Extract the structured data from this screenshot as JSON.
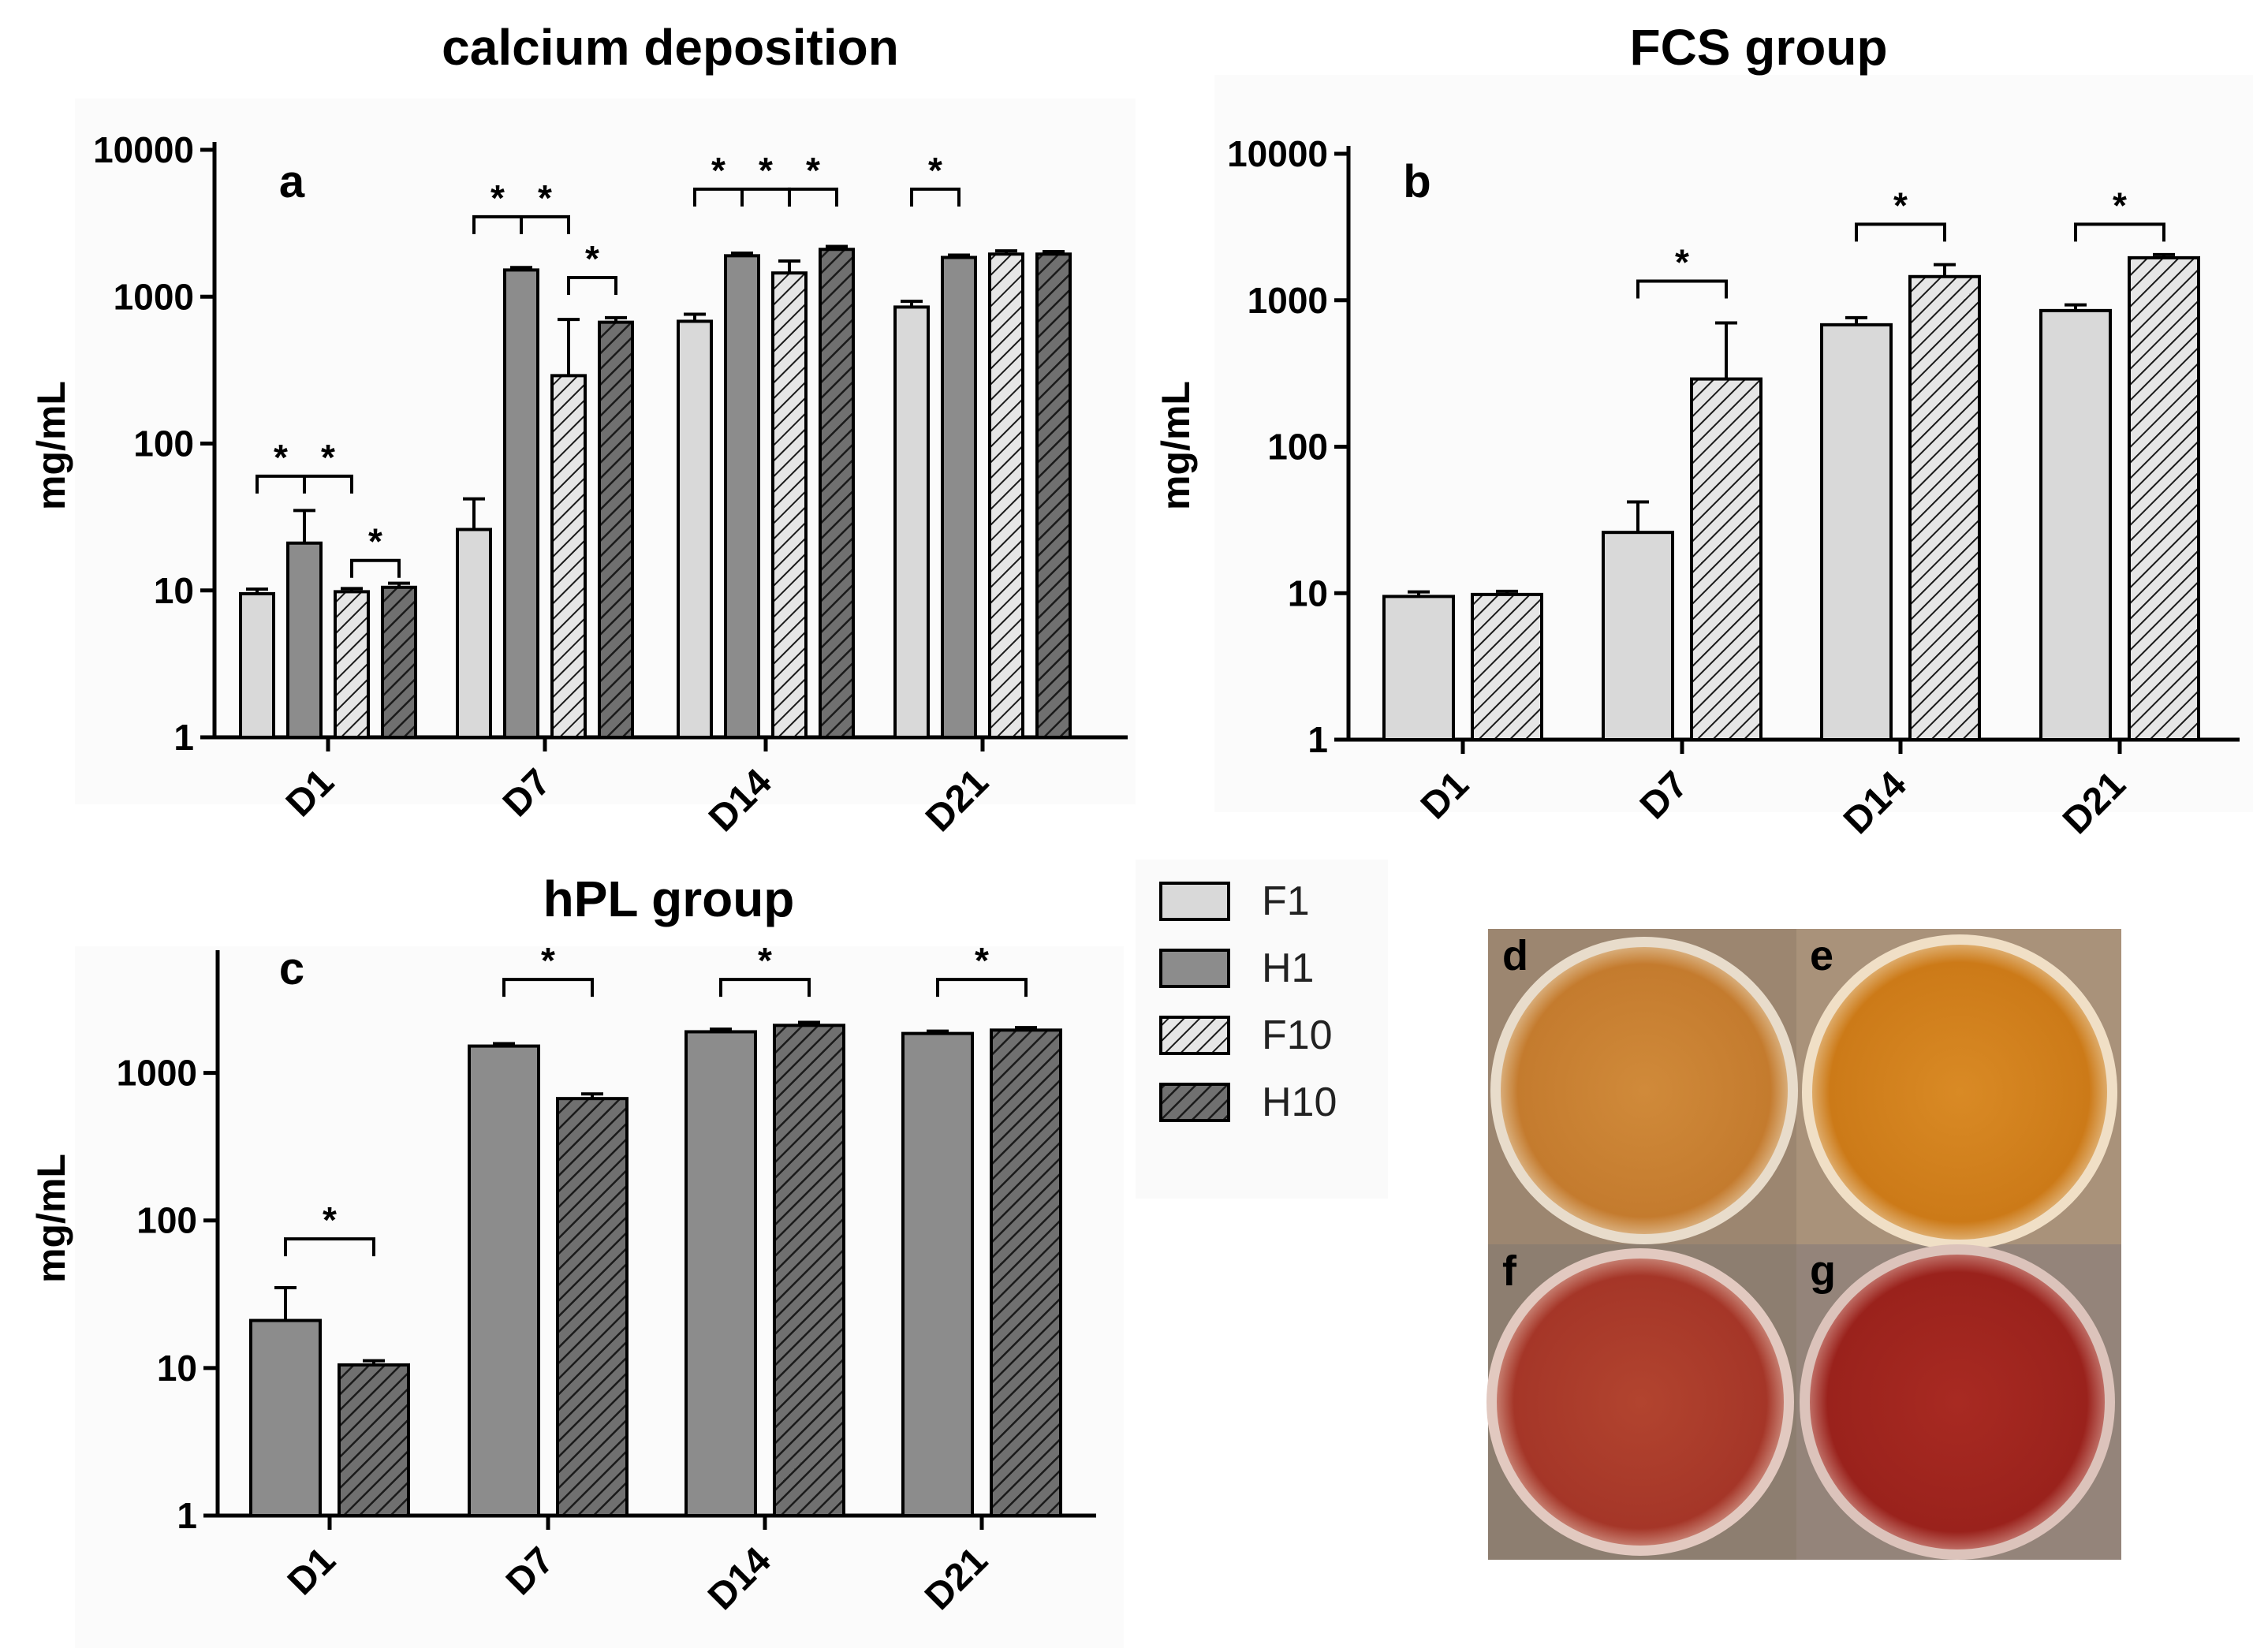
{
  "colors": {
    "F1": "#d9d9d9",
    "H1": "#8c8c8c",
    "F10": "#e6e6e6",
    "H10": "#707070",
    "hatch": "#1a1a1a",
    "photo_bg": "#9c8670",
    "orange_dish": "#c97a28",
    "red_dish": "#a8332a"
  },
  "legend": [
    {
      "key": "F1",
      "label": "F1",
      "hatched": false
    },
    {
      "key": "H1",
      "label": "H1",
      "hatched": false
    },
    {
      "key": "F10",
      "label": "F10",
      "hatched": true
    },
    {
      "key": "H10",
      "label": "H10",
      "hatched": true
    }
  ],
  "chart_data": [
    {
      "id": "a",
      "type": "bar",
      "title": "calcium deposition",
      "panel_label": "a",
      "ylabel": "mg/mL",
      "yscale": "log",
      "ylim": [
        1,
        10000
      ],
      "yticks": [
        1,
        10,
        100,
        1000,
        10000
      ],
      "ytick_labels": [
        "1",
        "10",
        "100",
        "1000",
        "10000"
      ],
      "categories": [
        "D1",
        "D7",
        "D14",
        "D21"
      ],
      "series": [
        {
          "name": "F1",
          "values": [
            9.5,
            26,
            680,
            850
          ],
          "errors": [
            10.2,
            42,
            760,
            930
          ]
        },
        {
          "name": "H1",
          "values": [
            21,
            1520,
            1900,
            1850
          ],
          "errors": [
            35,
            1580,
            1980,
            1920
          ]
        },
        {
          "name": "F10",
          "values": [
            9.8,
            290,
            1450,
            1950
          ],
          "errors": [
            10.3,
            700,
            1750,
            2050
          ]
        },
        {
          "name": "H10",
          "values": [
            10.5,
            670,
            2100,
            1950
          ],
          "errors": [
            11.2,
            720,
            2200,
            2030
          ]
        }
      ],
      "significance": [
        {
          "group": 0,
          "from": 0,
          "to": 1,
          "mid": 2,
          "level": 60,
          "label": "*",
          "double": true,
          "label2": "*"
        },
        {
          "group": 0,
          "from": 2,
          "to": 3,
          "level": 16,
          "label": "*"
        },
        {
          "group": 1,
          "from": 0,
          "to": 1,
          "mid": 2,
          "level": 3500,
          "label": "*",
          "double": true,
          "label2": "*"
        },
        {
          "group": 1,
          "from": 2,
          "to": 3,
          "level": 1350,
          "label": "*"
        },
        {
          "group": 2,
          "from": 0,
          "to": 1,
          "mid": 2,
          "level": 5400,
          "label": "*",
          "double": true,
          "label2": "*"
        },
        {
          "group": 2,
          "from": 2,
          "to": 3,
          "level": 5400,
          "label": "*"
        },
        {
          "group": 3,
          "from": 0,
          "to": 1,
          "level": 5400,
          "label": "*"
        }
      ]
    },
    {
      "id": "b",
      "type": "bar",
      "title": "FCS group",
      "panel_label": "b",
      "ylabel": "mg/mL",
      "yscale": "log",
      "ylim": [
        1,
        10000
      ],
      "yticks": [
        1,
        10,
        100,
        1000,
        10000
      ],
      "ytick_labels": [
        "1",
        "10",
        "100",
        "1000",
        "10000"
      ],
      "categories": [
        "D1",
        "D7",
        "D14",
        "D21"
      ],
      "series": [
        {
          "name": "F1",
          "values": [
            9.5,
            26,
            680,
            850
          ],
          "errors": [
            10.2,
            42,
            760,
            930
          ]
        },
        {
          "name": "F10",
          "values": [
            9.8,
            290,
            1450,
            1950
          ],
          "errors": [
            10.3,
            700,
            1750,
            2050
          ]
        }
      ],
      "significance": [
        {
          "group": 1,
          "from": 0,
          "to": 1,
          "level": 1350,
          "label": "*"
        },
        {
          "group": 2,
          "from": 0,
          "to": 1,
          "level": 3300,
          "label": "*"
        },
        {
          "group": 3,
          "from": 0,
          "to": 1,
          "level": 3300,
          "label": "*"
        }
      ]
    },
    {
      "id": "c",
      "type": "bar",
      "title": "hPL group",
      "panel_label": "c",
      "ylabel": "mg/mL",
      "yscale": "log",
      "ylim": [
        1,
        6000
      ],
      "yticks": [
        1,
        10,
        100,
        1000
      ],
      "ytick_labels": [
        "1",
        "10",
        "100",
        "1000"
      ],
      "categories": [
        "D1",
        "D7",
        "D14",
        "D21"
      ],
      "series": [
        {
          "name": "H1",
          "values": [
            21,
            1520,
            1900,
            1850
          ],
          "errors": [
            35,
            1580,
            1980,
            1920
          ]
        },
        {
          "name": "H10",
          "values": [
            10.5,
            670,
            2100,
            1950
          ],
          "errors": [
            11.2,
            720,
            2200,
            2030
          ]
        }
      ],
      "significance": [
        {
          "group": 0,
          "from": 0,
          "to": 1,
          "level": 75,
          "label": "*"
        },
        {
          "group": 1,
          "from": 0,
          "to": 1,
          "level": 4300,
          "label": "*"
        },
        {
          "group": 2,
          "from": 0,
          "to": 1,
          "level": 4300,
          "label": "*"
        },
        {
          "group": 3,
          "from": 0,
          "to": 1,
          "level": 4300,
          "label": "*"
        }
      ]
    }
  ],
  "photos": [
    {
      "label": "d",
      "tone": "orange_light"
    },
    {
      "label": "e",
      "tone": "orange_strong"
    },
    {
      "label": "f",
      "tone": "red_light"
    },
    {
      "label": "g",
      "tone": "red_strong"
    }
  ]
}
